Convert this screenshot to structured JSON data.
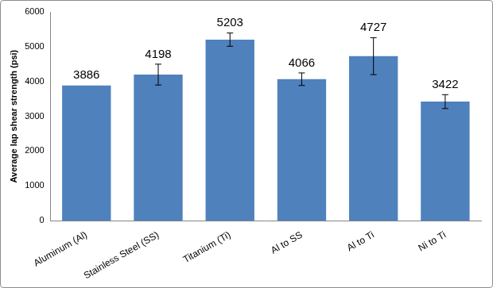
{
  "chart_data": {
    "type": "bar",
    "y_label": "Average lap shear strength (psi)",
    "categories": [
      "Aluminum (Al)",
      "Stainless Steel (SS)",
      "Titanium (Ti)",
      "Al to SS",
      "Al to Ti",
      "Ni to Ti"
    ],
    "values": [
      3886,
      4198,
      5203,
      4066,
      4727,
      3422
    ],
    "errors": [
      null,
      300,
      190,
      180,
      530,
      200
    ],
    "color": "#4f81bd",
    "ylim": [
      0,
      6000
    ],
    "yticks": [
      0,
      1000,
      2000,
      3000,
      4000,
      5000,
      6000
    ],
    "grid": false,
    "data_labels": true
  }
}
